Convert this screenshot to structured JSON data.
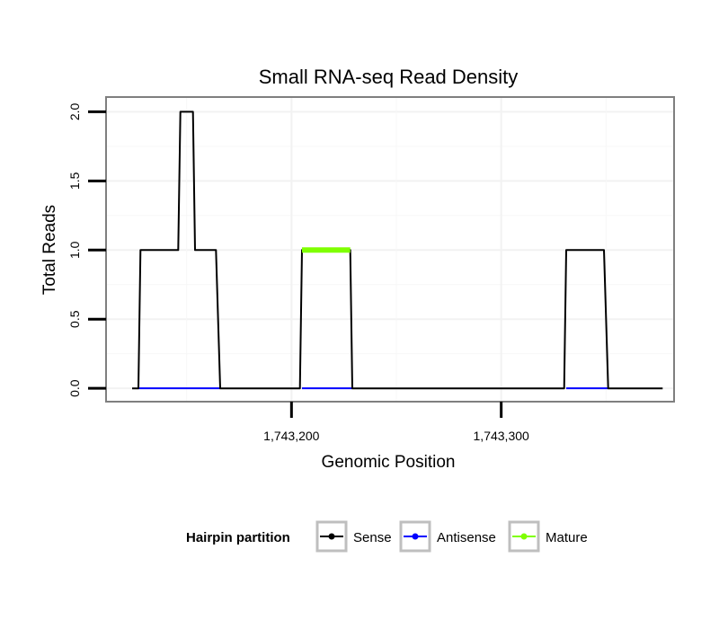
{
  "chart_data": {
    "type": "line",
    "title": "Small RNA-seq Read Density",
    "xlabel": "Genomic Position",
    "ylabel": "Total Reads",
    "xlim": [
      1743112,
      1743382
    ],
    "ylim": [
      -0.09,
      2.1
    ],
    "x_ticks": [
      1743200,
      1743300
    ],
    "x_tick_labels": [
      "1,743,200",
      "1,743,300"
    ],
    "y_ticks": [
      0.0,
      0.5,
      1.0,
      1.5,
      2.0
    ],
    "y_tick_labels": [
      "0.0",
      "0.5",
      "1.0",
      "1.5",
      "2.0"
    ],
    "grid": true,
    "series": [
      {
        "name": "Sense",
        "color": "#000000",
        "x": [
          1743124,
          1743127,
          1743128,
          1743146,
          1743147,
          1743153,
          1743154,
          1743164,
          1743166,
          1743204,
          1743205,
          1743228,
          1743229,
          1743330,
          1743331,
          1743349,
          1743351,
          1743377
        ],
        "y": [
          0,
          0,
          1,
          1,
          2,
          2,
          1,
          1,
          0,
          0,
          1,
          1,
          0,
          0,
          1,
          1,
          0,
          0
        ]
      },
      {
        "name": "Antisense",
        "color": "#0000ff",
        "x": [
          1743127,
          1743166,
          1743205,
          1743229,
          1743331,
          1743351
        ],
        "y": [
          0,
          0,
          0,
          0,
          0,
          0
        ],
        "segments": [
          [
            0,
            1
          ],
          [
            2,
            3
          ],
          [
            4,
            5
          ]
        ]
      },
      {
        "name": "Mature",
        "color": "#7fff00",
        "x": [
          1743205,
          1743228
        ],
        "y": [
          1,
          1
        ]
      }
    ],
    "legend": {
      "title": "Hairpin partition",
      "position": "bottom",
      "items": [
        {
          "label": "Sense",
          "color": "#000000"
        },
        {
          "label": "Antisense",
          "color": "#0000ff"
        },
        {
          "label": "Mature",
          "color": "#7fff00"
        }
      ]
    }
  }
}
